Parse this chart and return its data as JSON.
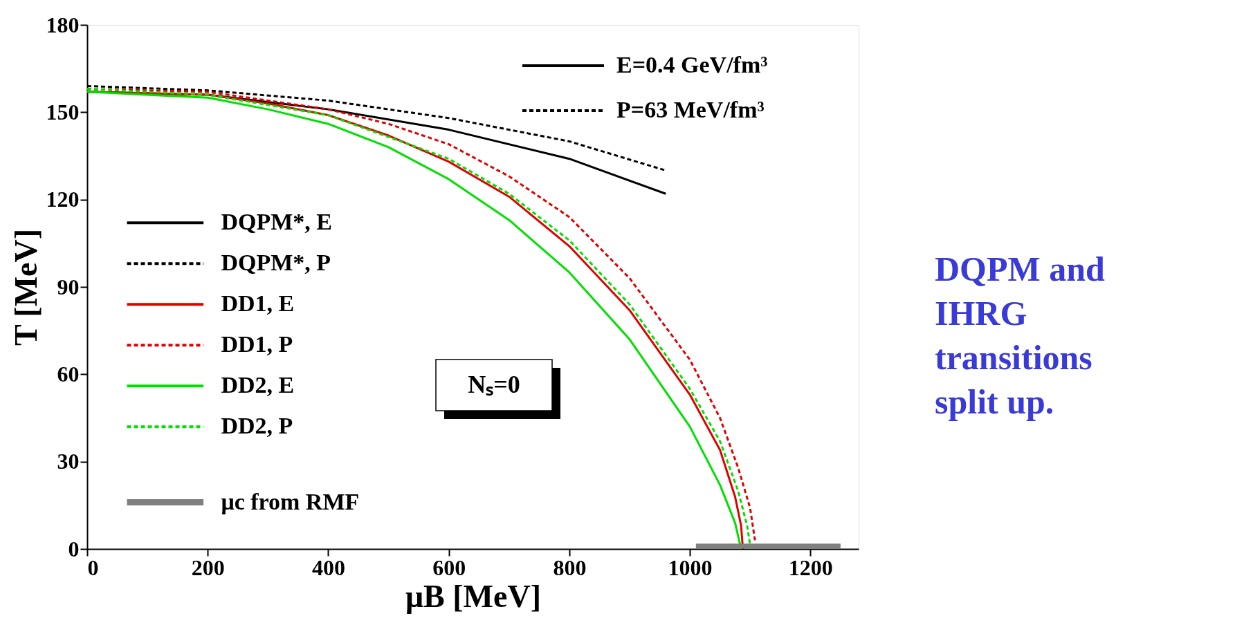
{
  "chart_data": {
    "type": "line",
    "xlabel": "μB [MeV]",
    "ylabel": "T [MeV]",
    "xlim": [
      0,
      1280
    ],
    "xticks": [
      0,
      200,
      400,
      600,
      800,
      {
        "value": 1000,
        "label": "1000"
      },
      {
        "value": 1200,
        "label": "1200"
      }
    ],
    "ylim": [
      0,
      180
    ],
    "yticks": [
      0,
      30,
      60,
      90,
      120,
      150,
      180
    ],
    "grid": false,
    "legend": "left",
    "marker": "none",
    "series": [
      {
        "name": "DQPM*, E",
        "color": "#000000",
        "line_style": "solid",
        "x": [
          0,
          200,
          400,
          600,
          800,
          960
        ],
        "values": [
          157,
          156,
          151,
          144,
          134,
          122
        ]
      },
      {
        "name": "DQPM*, P",
        "color": "#000000",
        "line_style": "dashed",
        "x": [
          0,
          200,
          400,
          600,
          800,
          960
        ],
        "values": [
          159,
          157.5,
          154,
          148,
          140,
          130
        ]
      },
      {
        "name": "DD1, E",
        "color": "#e00000",
        "line_style": "solid",
        "x": [
          0,
          200,
          300,
          400,
          500,
          600,
          700,
          800,
          900,
          1000,
          1050,
          1075,
          1085,
          1088
        ],
        "values": [
          157,
          156,
          153,
          149,
          142,
          133,
          121,
          104,
          82,
          53,
          34,
          18,
          8,
          0
        ]
      },
      {
        "name": "DD1, P",
        "color": "#e00000",
        "line_style": "dashed",
        "x": [
          0,
          200,
          400,
          500,
          600,
          700,
          800,
          900,
          1000,
          1050,
          1080,
          1100,
          1108
        ],
        "values": [
          158,
          157,
          151,
          146,
          139,
          128,
          114,
          93,
          65,
          45,
          28,
          14,
          3
        ]
      },
      {
        "name": "DD2, E",
        "color": "#00e000",
        "line_style": "solid",
        "x": [
          0,
          200,
          300,
          400,
          500,
          600,
          700,
          800,
          900,
          1000,
          1050,
          1075,
          1085
        ],
        "values": [
          157,
          155,
          151,
          146,
          138,
          127,
          113,
          95,
          72,
          42,
          22,
          9,
          0
        ]
      },
      {
        "name": "DD2, P",
        "color": "#00e000",
        "line_style": "dashed",
        "x": [
          0,
          200,
          400,
          600,
          700,
          800,
          900,
          1000,
          1050,
          1080,
          1095,
          1101
        ],
        "values": [
          158,
          156,
          149,
          134,
          122,
          106,
          84,
          55,
          37,
          20,
          8,
          0
        ]
      },
      {
        "name": "μc from RMF",
        "color": "#808080",
        "line_style": "solid",
        "x": [
          1010,
          1250
        ],
        "values": [
          1,
          1
        ]
      }
    ],
    "annotations": [
      "E=0.4 GeV/fm³",
      "P=63 MeV/fm³",
      "Nₛ=0",
      "DQPM and\nIHRG\ntransitions\nsplit up."
    ]
  }
}
